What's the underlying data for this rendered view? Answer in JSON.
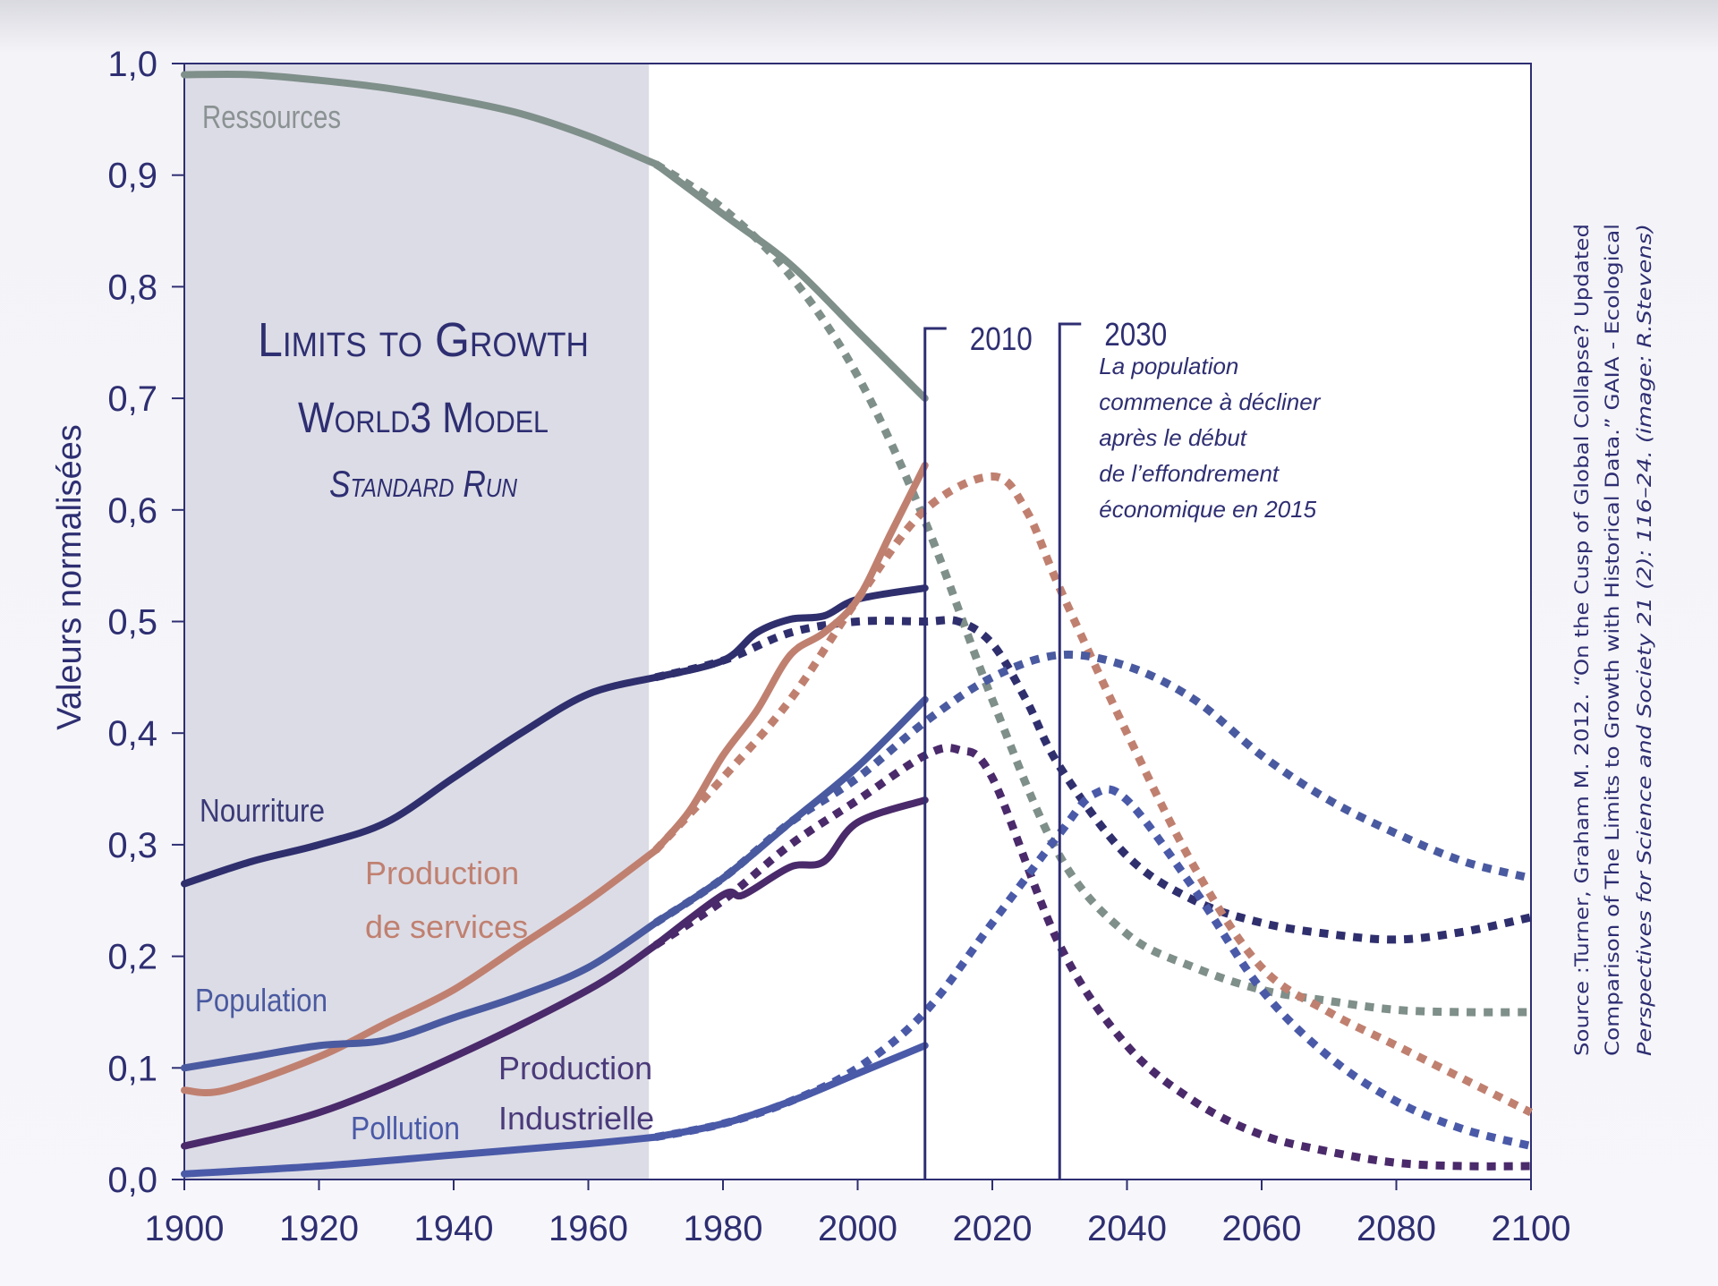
{
  "chart_data": {
    "type": "line",
    "title": [
      "Limits to Growth",
      "World3 Model",
      "Standard Run"
    ],
    "ylabel": "Valeurs normalisées",
    "xlabel": "",
    "xlim": [
      1900,
      2100
    ],
    "ylim": [
      0,
      1
    ],
    "x_ticks": [
      "1900",
      "1920",
      "1940",
      "1960",
      "1980",
      "2000",
      "2020",
      "2040",
      "2060",
      "2080",
      "2100"
    ],
    "y_ticks": [
      "0,0",
      "0,1",
      "0,2",
      "0,3",
      "0,4",
      "0,5",
      "0,6",
      "0,7",
      "0,8",
      "0,9",
      "1,0"
    ],
    "grid": false,
    "shaded_period": [
      1900,
      1969
    ],
    "markers": [
      {
        "year": 2010,
        "label": "2010"
      },
      {
        "year": 2030,
        "label": "2030",
        "note": [
          "La population",
          "commence à décliner",
          "après le début",
          "de l’effondrement",
          "économique en 2015"
        ]
      }
    ],
    "series": [
      {
        "name": "Ressources",
        "color": "#7f8f8a",
        "history": [
          [
            1900,
            0.99
          ],
          [
            1910,
            0.99
          ],
          [
            1920,
            0.985
          ],
          [
            1930,
            0.978
          ],
          [
            1940,
            0.968
          ],
          [
            1950,
            0.955
          ],
          [
            1960,
            0.935
          ],
          [
            1970,
            0.91
          ]
        ],
        "data": [
          [
            1970,
            0.91
          ],
          [
            1980,
            0.865
          ],
          [
            1990,
            0.82
          ],
          [
            2000,
            0.76
          ],
          [
            2010,
            0.7
          ]
        ],
        "model": [
          [
            1970,
            0.91
          ],
          [
            1980,
            0.87
          ],
          [
            1990,
            0.81
          ],
          [
            2000,
            0.72
          ],
          [
            2010,
            0.59
          ],
          [
            2020,
            0.43
          ],
          [
            2030,
            0.29
          ],
          [
            2040,
            0.22
          ],
          [
            2050,
            0.19
          ],
          [
            2060,
            0.17
          ],
          [
            2070,
            0.16
          ],
          [
            2080,
            0.152
          ],
          [
            2090,
            0.15
          ],
          [
            2100,
            0.15
          ]
        ]
      },
      {
        "name": "Nourriture",
        "color": "#2f2f6e",
        "history": [
          [
            1900,
            0.265
          ],
          [
            1910,
            0.285
          ],
          [
            1920,
            0.3
          ],
          [
            1930,
            0.32
          ],
          [
            1940,
            0.36
          ],
          [
            1950,
            0.4
          ],
          [
            1960,
            0.435
          ],
          [
            1970,
            0.45
          ]
        ],
        "data": [
          [
            1970,
            0.45
          ],
          [
            1980,
            0.465
          ],
          [
            1985,
            0.49
          ],
          [
            1990,
            0.502
          ],
          [
            1995,
            0.505
          ],
          [
            2000,
            0.52
          ],
          [
            2010,
            0.53
          ]
        ],
        "model": [
          [
            1970,
            0.45
          ],
          [
            1980,
            0.465
          ],
          [
            1990,
            0.49
          ],
          [
            2000,
            0.5
          ],
          [
            2010,
            0.5
          ],
          [
            2015,
            0.5
          ],
          [
            2020,
            0.48
          ],
          [
            2025,
            0.43
          ],
          [
            2030,
            0.37
          ],
          [
            2040,
            0.29
          ],
          [
            2050,
            0.25
          ],
          [
            2060,
            0.23
          ],
          [
            2070,
            0.22
          ],
          [
            2080,
            0.215
          ],
          [
            2090,
            0.222
          ],
          [
            2100,
            0.235
          ]
        ]
      },
      {
        "name": "Production de services",
        "color": "#c08070",
        "history": [
          [
            1900,
            0.08
          ],
          [
            1906,
            0.08
          ],
          [
            1920,
            0.11
          ],
          [
            1930,
            0.14
          ],
          [
            1940,
            0.17
          ],
          [
            1950,
            0.21
          ],
          [
            1960,
            0.25
          ],
          [
            1970,
            0.295
          ]
        ],
        "data": [
          [
            1970,
            0.295
          ],
          [
            1975,
            0.33
          ],
          [
            1980,
            0.38
          ],
          [
            1985,
            0.42
          ],
          [
            1990,
            0.47
          ],
          [
            1995,
            0.49
          ],
          [
            2000,
            0.52
          ],
          [
            2005,
            0.58
          ],
          [
            2010,
            0.64
          ]
        ],
        "model": [
          [
            1970,
            0.295
          ],
          [
            1980,
            0.36
          ],
          [
            1990,
            0.43
          ],
          [
            2000,
            0.52
          ],
          [
            2010,
            0.6
          ],
          [
            2020,
            0.63
          ],
          [
            2025,
            0.6
          ],
          [
            2030,
            0.53
          ],
          [
            2040,
            0.4
          ],
          [
            2050,
            0.28
          ],
          [
            2060,
            0.19
          ],
          [
            2070,
            0.15
          ],
          [
            2080,
            0.12
          ],
          [
            2090,
            0.09
          ],
          [
            2100,
            0.06
          ]
        ]
      },
      {
        "name": "Population",
        "color": "#4a5aa0",
        "history": [
          [
            1900,
            0.1
          ],
          [
            1910,
            0.11
          ],
          [
            1920,
            0.12
          ],
          [
            1930,
            0.125
          ],
          [
            1940,
            0.145
          ],
          [
            1950,
            0.165
          ],
          [
            1960,
            0.19
          ],
          [
            1970,
            0.23
          ]
        ],
        "data": [
          [
            1970,
            0.23
          ],
          [
            1980,
            0.27
          ],
          [
            1990,
            0.32
          ],
          [
            2000,
            0.37
          ],
          [
            2010,
            0.43
          ]
        ],
        "model": [
          [
            1970,
            0.23
          ],
          [
            1980,
            0.27
          ],
          [
            1990,
            0.32
          ],
          [
            2000,
            0.36
          ],
          [
            2010,
            0.41
          ],
          [
            2020,
            0.45
          ],
          [
            2030,
            0.47
          ],
          [
            2040,
            0.46
          ],
          [
            2050,
            0.43
          ],
          [
            2060,
            0.38
          ],
          [
            2070,
            0.34
          ],
          [
            2080,
            0.31
          ],
          [
            2090,
            0.285
          ],
          [
            2100,
            0.27
          ]
        ]
      },
      {
        "name": "Production Industrielle",
        "color": "#4a2a6a",
        "history": [
          [
            1900,
            0.03
          ],
          [
            1920,
            0.06
          ],
          [
            1940,
            0.11
          ],
          [
            1960,
            0.17
          ],
          [
            1970,
            0.21
          ]
        ],
        "data": [
          [
            1970,
            0.21
          ],
          [
            1980,
            0.255
          ],
          [
            1983,
            0.255
          ],
          [
            1990,
            0.28
          ],
          [
            1995,
            0.285
          ],
          [
            2000,
            0.32
          ],
          [
            2010,
            0.34
          ]
        ],
        "model": [
          [
            1970,
            0.21
          ],
          [
            1980,
            0.25
          ],
          [
            1990,
            0.3
          ],
          [
            2000,
            0.34
          ],
          [
            2010,
            0.38
          ],
          [
            2015,
            0.385
          ],
          [
            2020,
            0.36
          ],
          [
            2030,
            0.21
          ],
          [
            2040,
            0.12
          ],
          [
            2050,
            0.07
          ],
          [
            2060,
            0.04
          ],
          [
            2070,
            0.025
          ],
          [
            2080,
            0.015
          ],
          [
            2090,
            0.012
          ],
          [
            2100,
            0.012
          ]
        ]
      },
      {
        "name": "Pollution",
        "color": "#4a5aa8",
        "history": [
          [
            1900,
            0.005
          ],
          [
            1920,
            0.012
          ],
          [
            1940,
            0.022
          ],
          [
            1960,
            0.032
          ],
          [
            1970,
            0.038
          ]
        ],
        "data": [
          [
            1970,
            0.038
          ],
          [
            1980,
            0.05
          ],
          [
            1990,
            0.07
          ],
          [
            2000,
            0.095
          ],
          [
            2010,
            0.12
          ]
        ],
        "model": [
          [
            1970,
            0.038
          ],
          [
            1980,
            0.05
          ],
          [
            1990,
            0.07
          ],
          [
            2000,
            0.1
          ],
          [
            2010,
            0.15
          ],
          [
            2020,
            0.23
          ],
          [
            2030,
            0.31
          ],
          [
            2035,
            0.345
          ],
          [
            2040,
            0.34
          ],
          [
            2050,
            0.26
          ],
          [
            2060,
            0.17
          ],
          [
            2070,
            0.11
          ],
          [
            2080,
            0.07
          ],
          [
            2090,
            0.045
          ],
          [
            2100,
            0.03
          ]
        ]
      }
    ],
    "source": [
      "Source :Turner, Graham M. 2012. “On the Cusp of Global Collapse? Updated",
      "Comparison of The Limits to Growth with Historical Data.” GAIA - Ecological",
      "Perspectives for Science and Society 21 (2): 116–24. (image: R.Stevens)"
    ]
  }
}
